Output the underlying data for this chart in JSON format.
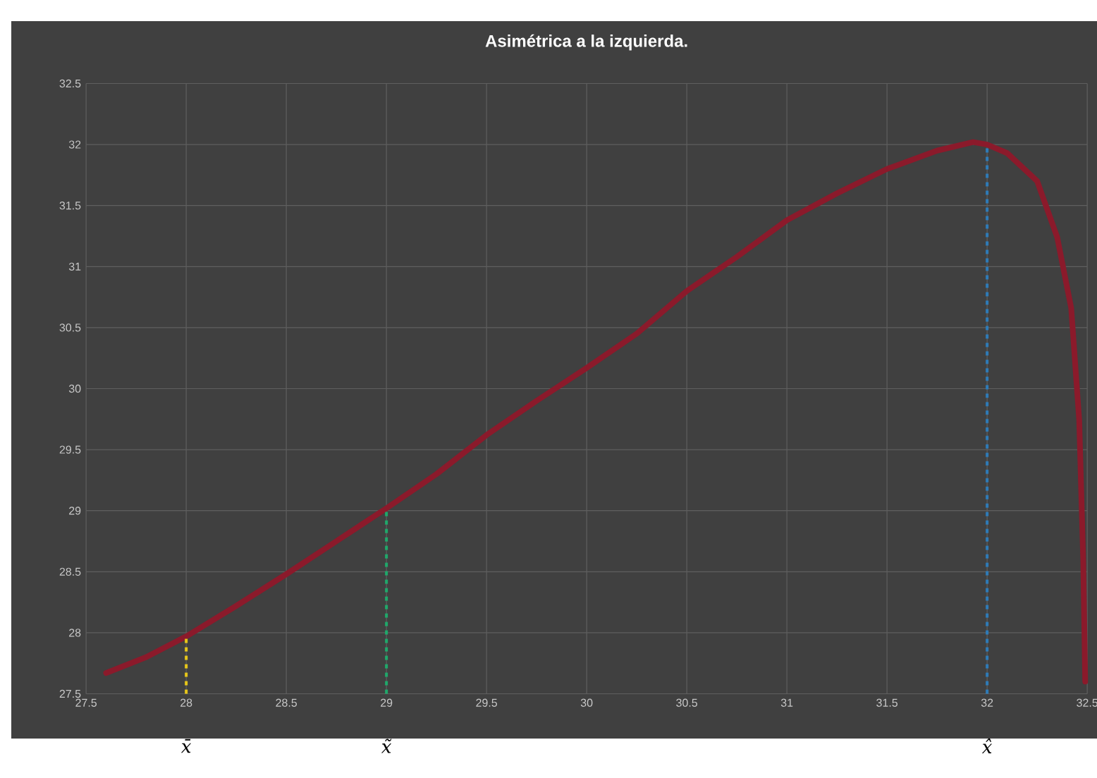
{
  "chart_data": {
    "type": "line",
    "title": "Asimétrica a la izquierda.",
    "series": [
      {
        "color": "#8b1a2b",
        "x": [
          27.6,
          27.8,
          28,
          28.25,
          28.5,
          28.75,
          29,
          29.25,
          29.5,
          29.75,
          30,
          30.25,
          30.5,
          30.75,
          31,
          31.25,
          31.5,
          31.75,
          31.93,
          32,
          32.1,
          32.25,
          32.35,
          32.42,
          32.46,
          32.48,
          32.49
        ],
        "values": [
          27.67,
          27.8,
          27.97,
          28.22,
          28.48,
          28.75,
          29.02,
          29.3,
          29.62,
          29.9,
          30.17,
          30.45,
          30.8,
          31.08,
          31.38,
          31.6,
          31.8,
          31.95,
          32.02,
          32.0,
          31.93,
          31.7,
          31.24,
          30.66,
          29.74,
          28.59,
          27.6
        ]
      }
    ],
    "xlim": [
      27.5,
      32.5
    ],
    "ylim": [
      27.5,
      32.5
    ],
    "xticks": [
      27.5,
      28,
      28.5,
      29,
      29.5,
      30,
      30.5,
      31,
      31.5,
      32,
      32.5
    ],
    "yticks": [
      27.5,
      28,
      28.5,
      29,
      29.5,
      30,
      30.5,
      31,
      31.5,
      32,
      32.5
    ],
    "grid": true,
    "legend": false,
    "marker": "none",
    "line_style": "solid",
    "ref_lines": [
      {
        "axis": "x",
        "value": 28,
        "label": "x̄",
        "color": "#e6c619",
        "line_style": "dashed"
      },
      {
        "axis": "x",
        "value": 29,
        "label": "x̃",
        "color": "#1fa86a",
        "line_style": "dashed"
      },
      {
        "axis": "x",
        "value": 32,
        "label": "x̂",
        "color": "#2e7bb8",
        "line_style": "dashed"
      }
    ]
  }
}
